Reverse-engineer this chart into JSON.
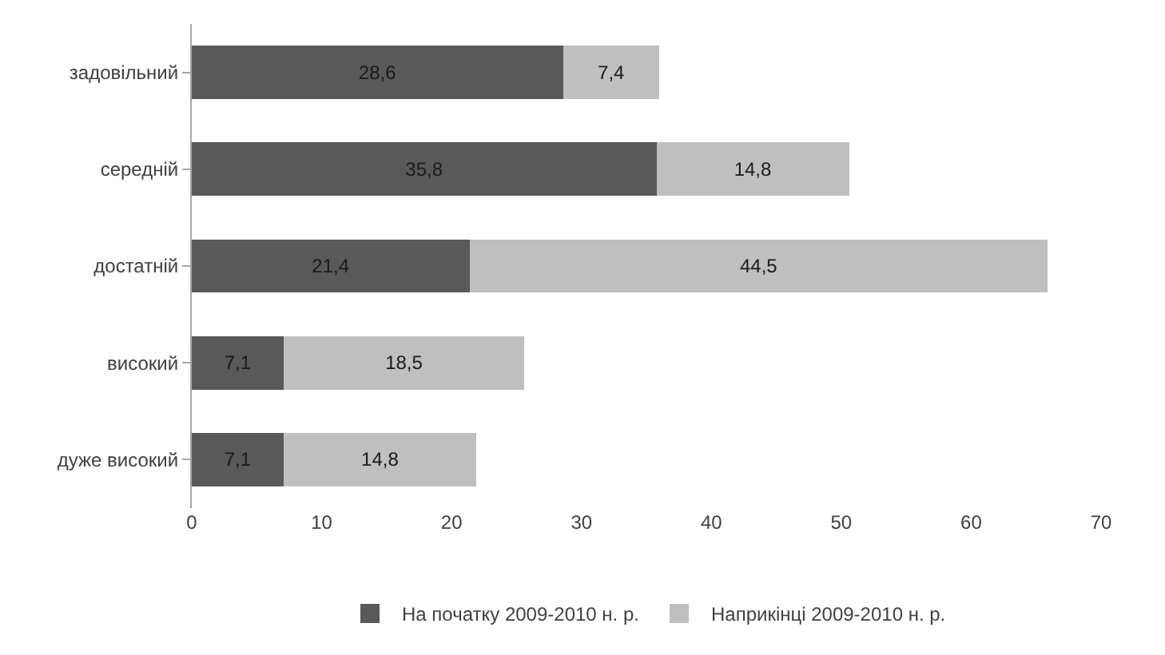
{
  "chart_data": {
    "type": "bar",
    "orientation": "horizontal",
    "stacked": true,
    "categories": [
      "задовільний",
      "середній",
      "достатній",
      "високий",
      "дуже високий"
    ],
    "series": [
      {
        "name": "На початку 2009-2010 н. р.",
        "color": "#595959",
        "values": [
          28.6,
          35.8,
          21.4,
          7.1,
          7.1
        ],
        "value_labels": [
          "28,6",
          "35,8",
          "21,4",
          "7,1",
          "7,1"
        ]
      },
      {
        "name": "Наприкінці 2009-2010 н. р.",
        "color": "#bfbfbf",
        "values": [
          7.4,
          14.8,
          44.5,
          18.5,
          14.8
        ],
        "value_labels": [
          "7,4",
          "14,8",
          "44,5",
          "18,5",
          "14,8"
        ]
      }
    ],
    "xlim": [
      0,
      70
    ],
    "xticks": [
      0,
      10,
      20,
      30,
      40,
      50,
      60,
      70
    ],
    "legend": "bottom"
  }
}
